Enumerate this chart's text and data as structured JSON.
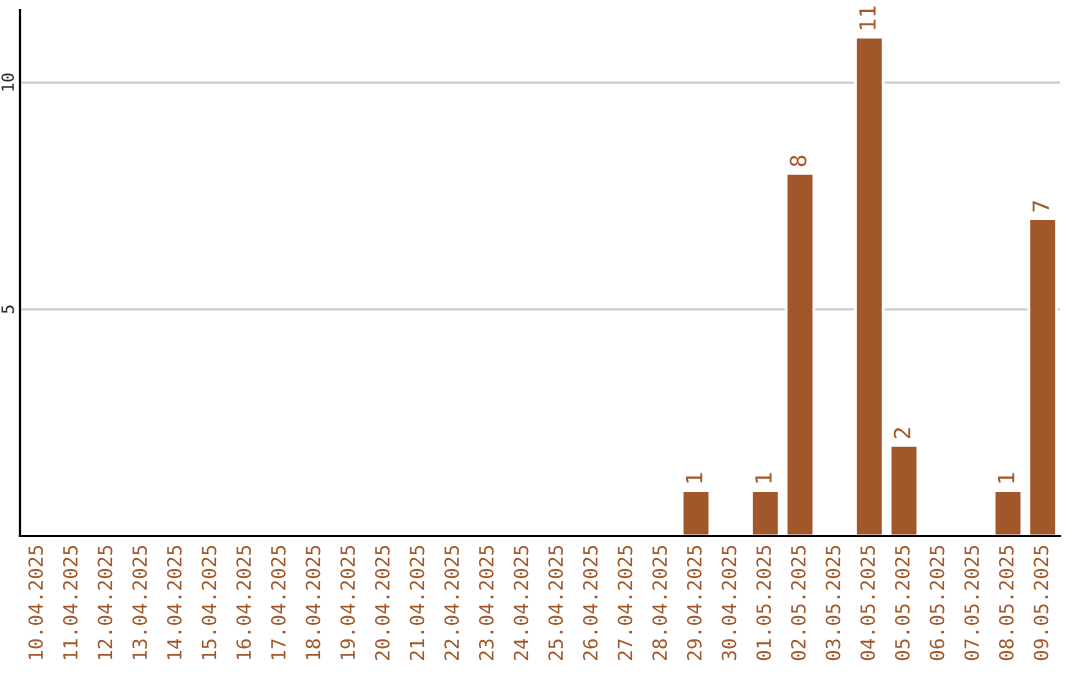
{
  "chart_data": {
    "type": "bar",
    "categories": [
      "10.04.2025",
      "11.04.2025",
      "12.04.2025",
      "13.04.2025",
      "14.04.2025",
      "15.04.2025",
      "16.04.2025",
      "17.04.2025",
      "18.04.2025",
      "19.04.2025",
      "20.04.2025",
      "21.04.2025",
      "22.04.2025",
      "23.04.2025",
      "24.04.2025",
      "25.04.2025",
      "26.04.2025",
      "27.04.2025",
      "28.04.2025",
      "29.04.2025",
      "30.04.2025",
      "01.05.2025",
      "02.05.2025",
      "03.05.2025",
      "04.05.2025",
      "05.05.2025",
      "06.05.2025",
      "07.05.2025",
      "08.05.2025",
      "09.05.2025"
    ],
    "values": [
      null,
      null,
      null,
      null,
      null,
      null,
      null,
      null,
      null,
      null,
      null,
      null,
      null,
      null,
      null,
      null,
      null,
      null,
      null,
      1,
      null,
      1,
      8,
      null,
      11,
      2,
      null,
      null,
      1,
      7
    ],
    "value_labels": [
      null,
      null,
      null,
      null,
      null,
      null,
      null,
      null,
      null,
      null,
      null,
      null,
      null,
      null,
      null,
      null,
      null,
      null,
      null,
      "1",
      null,
      "1",
      "8",
      null,
      "11",
      "2",
      null,
      null,
      "1",
      "7"
    ],
    "color": "#a0582a",
    "ylim": [
      0,
      11.6
    ],
    "yticks": [
      5,
      10
    ],
    "grid": "y"
  }
}
